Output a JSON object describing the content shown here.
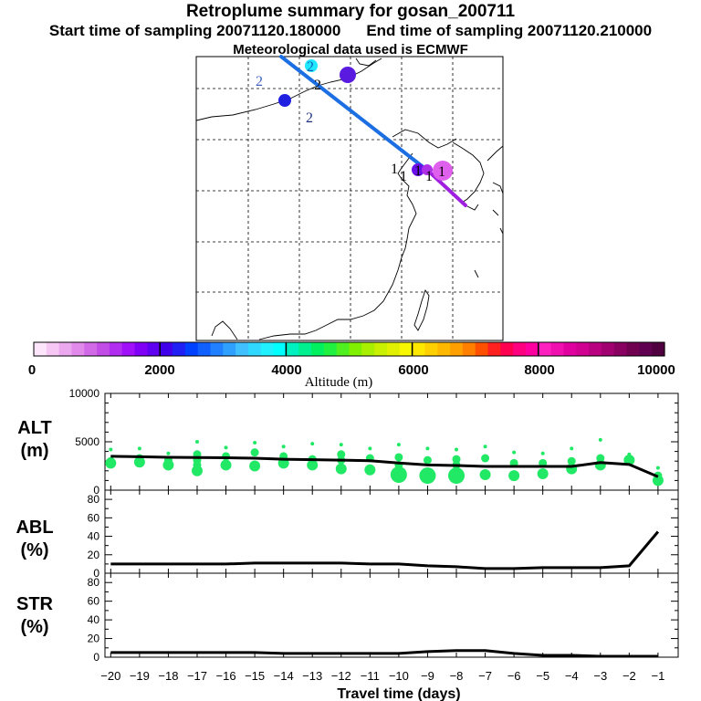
{
  "header": {
    "title": "Retroplume summary for gosan_200711",
    "start_label": "Start time of sampling 20071120.180000",
    "end_label": "End time of sampling 20071120.210000",
    "met_label": "Meteorological data used is ECMWF"
  },
  "map": {
    "cluster_labels": [
      "2",
      "2",
      "2",
      "2",
      "1",
      "1",
      "1",
      "1",
      "1"
    ],
    "trajectory_colors": [
      "#1c6fe3",
      "#a020e0"
    ]
  },
  "colorbar": {
    "ticks": [
      "0",
      "2000",
      "4000",
      "6000",
      "8000",
      "10000"
    ],
    "label": "Altitude (m)",
    "min": 0,
    "max": 10000,
    "colors": [
      "#fde6fb",
      "#f6c6f5",
      "#eca8ef",
      "#e18aec",
      "#d26ae8",
      "#c24ce6",
      "#b12df0",
      "#a010f8",
      "#8000f5",
      "#6000f0",
      "#4000ea",
      "#2020f5",
      "#0040ff",
      "#1060ff",
      "#2080ff",
      "#30a0ff",
      "#40c0ff",
      "#30d8ff",
      "#20f0ff",
      "#00ffff",
      "#00f0c0",
      "#00f090",
      "#00f060",
      "#20f040",
      "#50f020",
      "#80f000",
      "#a8f000",
      "#c8f000",
      "#e0f000",
      "#f8f800",
      "#ffe800",
      "#ffd000",
      "#ffb800",
      "#ffa000",
      "#ff8000",
      "#ff5000",
      "#ff2020",
      "#ff0050",
      "#ff0080",
      "#ff00a0",
      "#ff20c0",
      "#f010b0",
      "#e000a0",
      "#d00090",
      "#b80080",
      "#a00070",
      "#880060",
      "#700050",
      "#600050",
      "#500040"
    ]
  },
  "chart_data": [
    {
      "type": "line",
      "panel": "ALT",
      "ylabel": "ALT (m)",
      "ylim": [
        0,
        10000
      ],
      "yticks": [
        "0",
        "5000",
        "10000"
      ],
      "x": [
        -20,
        -19,
        -18,
        -17,
        -16,
        -15,
        -14,
        -13,
        -12,
        -11,
        -10,
        -9,
        -8,
        -7,
        -6,
        -5,
        -4,
        -3,
        -2,
        -1
      ],
      "values": [
        3500,
        3450,
        3400,
        3380,
        3350,
        3300,
        3200,
        3150,
        3100,
        3050,
        2800,
        2600,
        2550,
        2450,
        2450,
        2450,
        2450,
        2850,
        2650,
        1400
      ],
      "markers": [
        {
          "x": -20,
          "y": [
            4200,
            3000,
            2800
          ]
        },
        {
          "x": -19,
          "y": [
            4300,
            3300,
            2900
          ]
        },
        {
          "x": -18,
          "y": [
            3800,
            3100,
            2600
          ]
        },
        {
          "x": -17,
          "y": [
            5000,
            3700,
            3100,
            2600,
            2000
          ]
        },
        {
          "x": -16,
          "y": [
            4400,
            3500,
            2600
          ]
        },
        {
          "x": -15,
          "y": [
            4900,
            3900,
            2500
          ]
        },
        {
          "x": -14,
          "y": [
            4500,
            3500,
            2800
          ]
        },
        {
          "x": -13,
          "y": [
            4800,
            3200,
            2600
          ]
        },
        {
          "x": -12,
          "y": [
            4700,
            3700,
            3100,
            2200
          ]
        },
        {
          "x": -11,
          "y": [
            4300,
            3300,
            2100
          ]
        },
        {
          "x": -10,
          "y": [
            4700,
            3400,
            2600,
            1600
          ]
        },
        {
          "x": -9,
          "y": [
            4300,
            3100,
            1500
          ]
        },
        {
          "x": -8,
          "y": [
            4200,
            3200,
            2600,
            1500
          ]
        },
        {
          "x": -7,
          "y": [
            4500,
            3300,
            1600
          ]
        },
        {
          "x": -6,
          "y": [
            3900,
            2800,
            1500
          ]
        },
        {
          "x": -5,
          "y": [
            3800,
            2800,
            1700
          ]
        },
        {
          "x": -4,
          "y": [
            4300,
            3000,
            2200
          ]
        },
        {
          "x": -3,
          "y": [
            5200,
            3300,
            2600
          ]
        },
        {
          "x": -2,
          "y": [
            3700,
            3100
          ]
        },
        {
          "x": -1,
          "y": [
            2300,
            1500,
            1000
          ]
        }
      ]
    },
    {
      "type": "line",
      "panel": "ABL",
      "ylabel": "ABL (%)",
      "ylim": [
        0,
        90
      ],
      "yticks": [
        "0",
        "20",
        "40",
        "60",
        "80"
      ],
      "x": [
        -20,
        -19,
        -18,
        -17,
        -16,
        -15,
        -14,
        -13,
        -12,
        -11,
        -10,
        -9,
        -8,
        -7,
        -6,
        -5,
        -4,
        -3,
        -2,
        -1
      ],
      "values": [
        10,
        10,
        10,
        10,
        10,
        11,
        11,
        11,
        11,
        10,
        10,
        8,
        7,
        5,
        5,
        6,
        6,
        6,
        8,
        45
      ]
    },
    {
      "type": "line",
      "panel": "STR",
      "ylabel": "STR (%)",
      "ylim": [
        0,
        90
      ],
      "yticks": [
        "0",
        "20",
        "40",
        "60",
        "80"
      ],
      "x": [
        -20,
        -19,
        -18,
        -17,
        -16,
        -15,
        -14,
        -13,
        -12,
        -11,
        -10,
        -9,
        -8,
        -7,
        -6,
        -5,
        -4,
        -3,
        -2,
        -1
      ],
      "values": [
        5,
        5,
        5,
        5,
        5,
        5,
        4,
        4,
        4,
        4,
        4,
        6,
        7,
        7,
        4,
        2,
        2,
        1,
        1,
        1
      ],
      "xlabel": "Travel time (days)",
      "xticks": [
        "−20",
        "−19",
        "−18",
        "−17",
        "−16",
        "−15",
        "−14",
        "−13",
        "−12",
        "−11",
        "−10",
        "−9",
        "−8",
        "−7",
        "−6",
        "−5",
        "−4",
        "−3",
        "−2",
        "−1"
      ]
    }
  ]
}
